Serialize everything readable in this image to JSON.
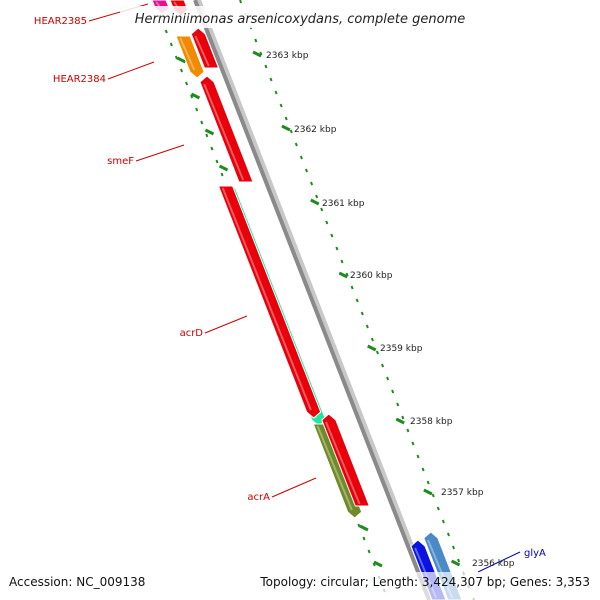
{
  "title": "Herminiimonas arsenicoxydans, complete genome",
  "footer": {
    "accession": "Accession: NC_009138",
    "topology": "Topology: circular; Length: 3,424,307 bp; Genes: 3,353"
  },
  "colors": {
    "backbone": "#8a8a8a",
    "tick": "#1f8a1f",
    "label_red": "#cc0000",
    "label_blue": "#0000cc"
  },
  "ticks": [
    "2363 kbp",
    "2362 kbp",
    "2361 kbp",
    "2360 kbp",
    "2359 kbp",
    "2358 kbp",
    "2357 kbp",
    "2356 kbp"
  ],
  "genes": [
    {
      "name": "HEAR2385",
      "color": "#e0148c"
    },
    {
      "name": "HEAR2384",
      "color": "#f08a00"
    },
    {
      "name": "smeF",
      "color": "#e8000a"
    },
    {
      "name": "acrD",
      "color": "#1ee8a0"
    },
    {
      "name": "acrA",
      "color": "#6f8a28"
    },
    {
      "name": "glyA",
      "color": "#0a14e0"
    }
  ],
  "extra_features": [
    {
      "color": "#e8000a"
    },
    {
      "color": "#e8000a"
    },
    {
      "color": "#e8000a"
    },
    {
      "color": "#4a8ac8"
    }
  ]
}
